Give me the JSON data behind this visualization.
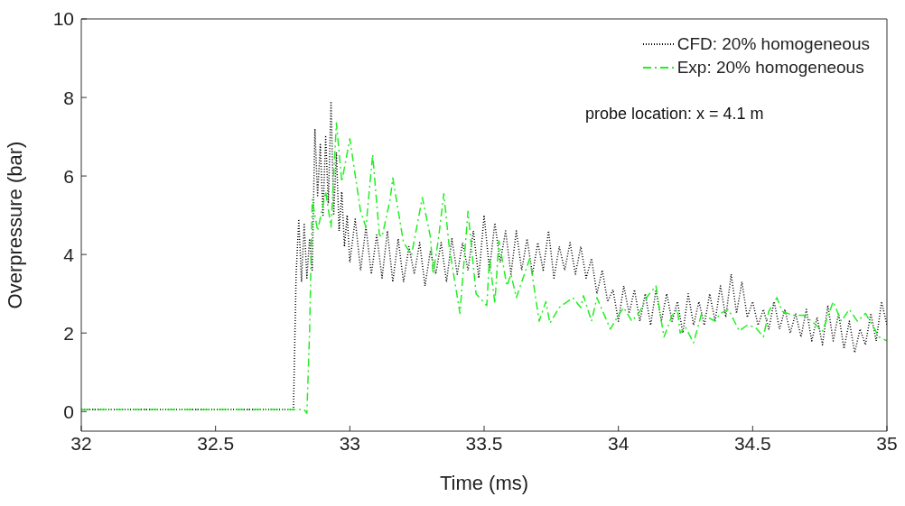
{
  "chart_data": {
    "type": "line",
    "xlabel": "Time (ms)",
    "ylabel": "Overpressure (bar)",
    "xlim": [
      32,
      35
    ],
    "xticks": [
      32,
      32.5,
      33,
      33.5,
      34,
      34.5,
      35
    ],
    "ylim": [
      -0.5,
      10
    ],
    "yticks": [
      0,
      2,
      4,
      6,
      8,
      10
    ],
    "grid": false,
    "legend": "top right",
    "marker": "none",
    "annotations": [
      "probe location: x = 4.1 m"
    ],
    "series": [
      {
        "name": "CFD: 20% homogeneous",
        "color": "#000000",
        "line_style": "dotted",
        "x": [
          32,
          32.79,
          32.8,
          32.81,
          32.82,
          32.83,
          32.84,
          32.85,
          32.86,
          32.87,
          32.88,
          32.89,
          32.9,
          32.91,
          32.92,
          32.93,
          32.94,
          32.95,
          32.96,
          32.97,
          32.98,
          32.99,
          33,
          33.02,
          33.04,
          33.06,
          33.08,
          33.1,
          33.12,
          33.14,
          33.16,
          33.18,
          33.2,
          33.22,
          33.24,
          33.26,
          33.28,
          33.3,
          33.32,
          33.34,
          33.36,
          33.38,
          33.4,
          33.42,
          33.44,
          33.46,
          33.48,
          33.5,
          33.52,
          33.54,
          33.56,
          33.58,
          33.6,
          33.62,
          33.64,
          33.66,
          33.68,
          33.7,
          33.72,
          33.74,
          33.76,
          33.78,
          33.8,
          33.82,
          33.84,
          33.86,
          33.88,
          33.9,
          33.92,
          33.94,
          33.96,
          33.98,
          34,
          34.02,
          34.04,
          34.06,
          34.08,
          34.1,
          34.12,
          34.14,
          34.16,
          34.18,
          34.2,
          34.22,
          34.24,
          34.26,
          34.28,
          34.3,
          34.32,
          34.34,
          34.36,
          34.38,
          34.4,
          34.42,
          34.44,
          34.46,
          34.48,
          34.5,
          34.52,
          34.54,
          34.56,
          34.58,
          34.6,
          34.62,
          34.64,
          34.66,
          34.68,
          34.7,
          34.72,
          34.74,
          34.76,
          34.78,
          34.8,
          34.82,
          34.84,
          34.86,
          34.88,
          34.9,
          34.92,
          34.94,
          34.96,
          34.98,
          35
        ],
        "values": [
          0.05,
          0.05,
          3.5,
          4.9,
          3.3,
          4.8,
          3.4,
          4.4,
          3.6,
          7.2,
          5.5,
          6.8,
          5.0,
          7.0,
          5.3,
          7.9,
          5.0,
          6.6,
          4.6,
          5.6,
          4.2,
          5.0,
          3.8,
          4.9,
          3.6,
          4.7,
          3.5,
          4.5,
          3.4,
          4.6,
          3.3,
          4.4,
          3.3,
          4.2,
          3.5,
          4.3,
          3.2,
          4.1,
          3.5,
          4.3,
          3.3,
          4.4,
          3.5,
          4.3,
          3.6,
          4.6,
          3.4,
          5.0,
          3.6,
          4.8,
          3.8,
          4.6,
          3.5,
          4.6,
          3.6,
          4.4,
          3.5,
          4.3,
          3.6,
          4.6,
          3.4,
          4.2,
          3.6,
          4.3,
          3.5,
          4.2,
          3.4,
          3.9,
          3.0,
          3.6,
          2.8,
          3.1,
          2.3,
          3.2,
          2.5,
          3.1,
          2.3,
          3.0,
          2.2,
          3.1,
          2.3,
          3.0,
          2.3,
          2.8,
          2.0,
          3.0,
          2.2,
          2.8,
          2.2,
          3.0,
          2.3,
          3.2,
          2.4,
          3.5,
          2.5,
          3.3,
          2.4,
          2.8,
          2.2,
          2.6,
          2.1,
          2.8,
          2.1,
          2.6,
          2.0,
          2.5,
          1.9,
          2.6,
          1.8,
          2.4,
          1.7,
          2.7,
          1.8,
          2.5,
          1.6,
          2.3,
          1.5,
          2.1,
          1.7,
          2.5,
          1.8,
          2.8,
          2.2
        ]
      },
      {
        "name": "Exp: 20% homogeneous",
        "color": "#22ee22",
        "line_style": "dashdot",
        "x": [
          32,
          32.83,
          32.84,
          32.85,
          32.86,
          32.88,
          32.91,
          32.93,
          32.95,
          32.97,
          33,
          33.04,
          33.06,
          33.085,
          33.11,
          33.12,
          33.15,
          33.16,
          33.2,
          33.23,
          33.27,
          33.3,
          33.31,
          33.33,
          33.35,
          33.37,
          33.41,
          33.44,
          33.47,
          33.51,
          33.52,
          33.54,
          33.555,
          33.585,
          33.6,
          33.62,
          33.67,
          33.705,
          33.73,
          33.745,
          33.78,
          33.83,
          33.86,
          33.87,
          33.9,
          33.92,
          33.97,
          34,
          34.02,
          34.05,
          34.08,
          34.11,
          34.14,
          34.16,
          34.17,
          34.2,
          34.22,
          34.23,
          34.25,
          34.28,
          34.31,
          34.32,
          34.36,
          34.38,
          34.41,
          34.45,
          34.48,
          34.51,
          34.54,
          34.56,
          34.59,
          34.61,
          34.65,
          34.69,
          34.72,
          34.76,
          34.8,
          34.83,
          34.86,
          34.89,
          34.92,
          34.95,
          34.97,
          35
        ],
        "values": [
          0.05,
          0.05,
          -0.05,
          2.0,
          5.4,
          4.6,
          5.6,
          4.7,
          7.35,
          5.85,
          6.95,
          5.1,
          4.7,
          6.55,
          4.5,
          4.45,
          5.4,
          5.95,
          4.3,
          4.0,
          5.45,
          4.45,
          3.5,
          4.4,
          5.55,
          4.2,
          2.5,
          5.1,
          3.0,
          2.7,
          3.9,
          2.75,
          4.35,
          3.2,
          3.5,
          2.9,
          3.9,
          2.3,
          2.8,
          2.25,
          2.65,
          2.9,
          2.65,
          2.95,
          2.3,
          2.9,
          2.1,
          2.45,
          2.65,
          2.3,
          2.55,
          2.95,
          3.2,
          2.3,
          1.9,
          2.45,
          2.6,
          2.0,
          2.15,
          1.75,
          2.5,
          2.45,
          2.3,
          2.5,
          2.6,
          2.05,
          2.2,
          2.15,
          1.9,
          2.55,
          2.9,
          2.55,
          2.45,
          2.45,
          2.3,
          2.05,
          2.8,
          2.3,
          2.6,
          2.3,
          2.5,
          2.15,
          1.9,
          1.8
        ]
      }
    ]
  }
}
